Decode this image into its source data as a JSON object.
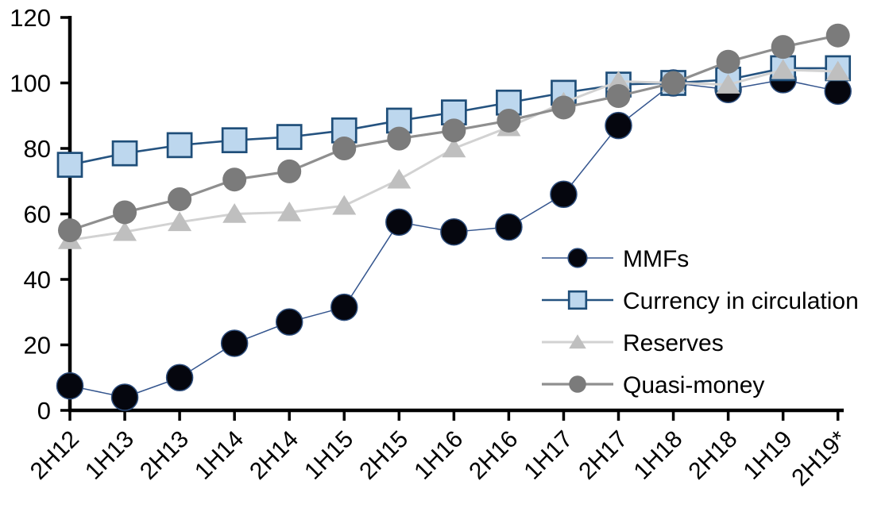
{
  "chart_data": {
    "type": "line",
    "title": "",
    "xlabel": "",
    "ylabel": "",
    "ylim": [
      0,
      120
    ],
    "yticks": [
      0,
      20,
      40,
      60,
      80,
      100,
      120
    ],
    "grid": false,
    "legend_position": "inside-right",
    "axis_color": "#000000",
    "text_color": "#000000",
    "categories": [
      "2H12",
      "1H13",
      "2H13",
      "1H14",
      "2H14",
      "1H15",
      "2H15",
      "1H16",
      "2H16",
      "1H17",
      "2H17",
      "1H18",
      "2H18",
      "1H19",
      "2H19*"
    ],
    "series": [
      {
        "name": "MMFs",
        "marker": "circle",
        "marker_fill": "#05060e",
        "marker_stroke": "#2d4d7c",
        "line_color": "#34558e",
        "line_width": 1.5,
        "values": [
          7.5,
          4,
          10,
          20.5,
          27,
          31.5,
          57.5,
          54.5,
          56,
          66,
          87,
          100,
          98,
          101,
          97.5
        ]
      },
      {
        "name": "Currency in circulation",
        "marker": "square",
        "marker_fill": "#bdd7ee",
        "marker_stroke": "#1f4e79",
        "line_color": "#255380",
        "line_width": 2.6,
        "values": [
          75,
          78.5,
          81,
          82.5,
          83.5,
          85.5,
          88.5,
          91,
          94,
          97,
          99.5,
          100,
          101,
          104.5,
          104.5
        ]
      },
      {
        "name": "Reserves",
        "marker": "triangle",
        "marker_fill": "#bfbfbf",
        "marker_stroke": "none",
        "line_color": "#d2d2d2",
        "line_width": 3,
        "values": [
          52,
          54.5,
          57.5,
          60,
          60.5,
          62.5,
          70.5,
          80,
          86.5,
          94,
          100.5,
          100,
          99.5,
          104,
          103.5
        ]
      },
      {
        "name": "Quasi-money",
        "marker": "circle",
        "marker_fill": "#7b7b7b",
        "marker_stroke": "none",
        "line_color": "#8f8f8f",
        "line_width": 3.2,
        "values": [
          55,
          60.5,
          64.5,
          70.5,
          73,
          80,
          83,
          85.5,
          88.5,
          92.5,
          96,
          100,
          106.5,
          111,
          114.5
        ]
      }
    ]
  }
}
